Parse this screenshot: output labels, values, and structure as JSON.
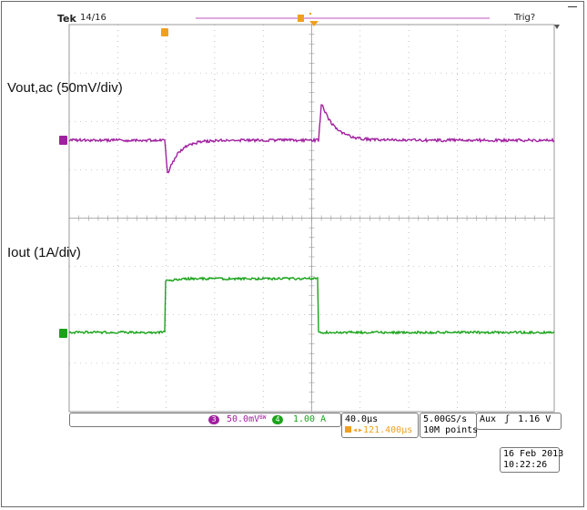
{
  "header": {
    "brand": "Tek",
    "record": "14/16",
    "trigger_status": "Trig?"
  },
  "labels": {
    "vout": "Vout,ac (50mV/div)",
    "iout": "Iout (1A/div)"
  },
  "channels": [
    {
      "id": "3",
      "scale": "50.0mV",
      "color": "#a020a0"
    },
    {
      "id": "4",
      "scale": "1.00 A",
      "color": "#1aa31a"
    }
  ],
  "channel_suffix": "BW",
  "timebase": {
    "scale": "40.0µs",
    "trigger_pos": "121.400µs",
    "sample_rate": "5.00GS/s",
    "record_length": "10M points"
  },
  "trigger": {
    "source": "Aux",
    "slope": "ʃ",
    "level": "1.16 V",
    "marker": "T"
  },
  "datetime": {
    "date": "16 Feb  2013",
    "time": "10:22:26"
  },
  "colors": {
    "ch3": "#a020a0",
    "ch4": "#1aa31a",
    "trigger": "#f0a020",
    "grid": "#9a9a9a"
  }
}
